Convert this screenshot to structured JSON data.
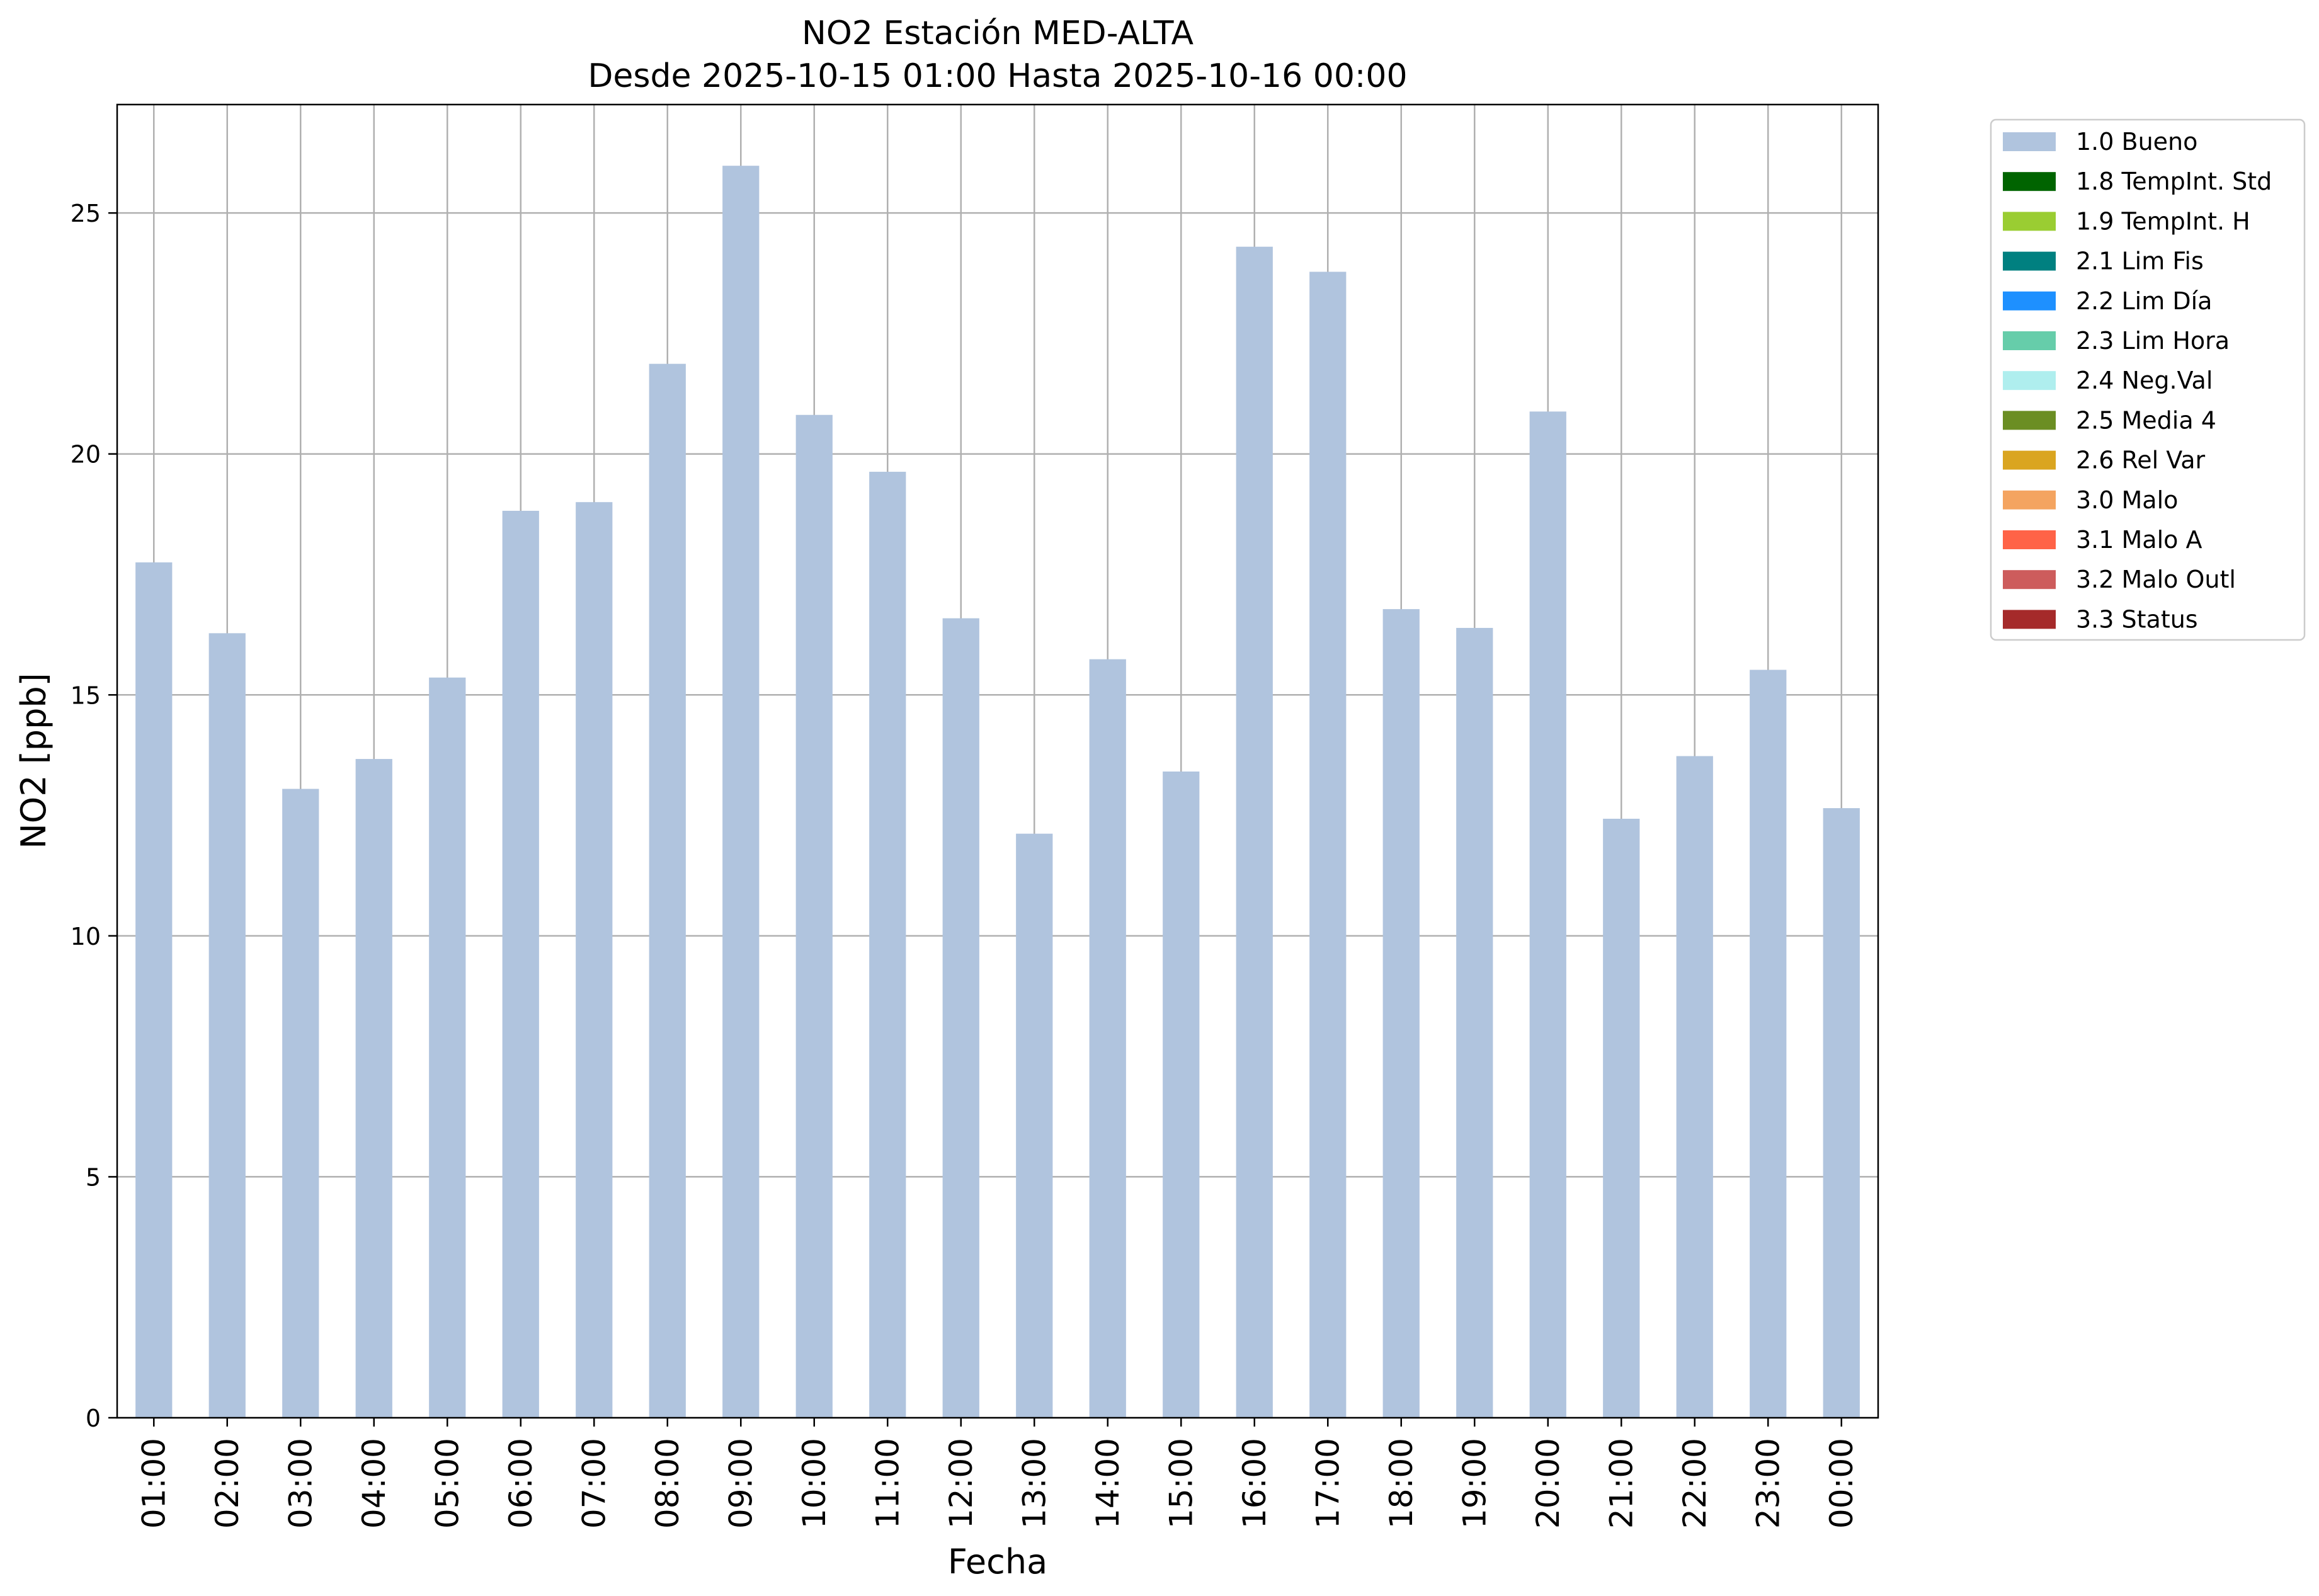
{
  "chart_data": {
    "type": "bar",
    "title": "NO2 Estación MED-ALTA",
    "subtitle": "Desde 2025-10-15 01:00 Hasta 2025-10-16 00:00",
    "xlabel": "Fecha",
    "ylabel": "NO2 [ppb]",
    "ylim": [
      0,
      27.25
    ],
    "yticks": [
      0,
      5,
      10,
      15,
      20,
      25
    ],
    "grid": true,
    "legend_position": "outside-right-top",
    "categories": [
      "01:00",
      "02:00",
      "03:00",
      "04:00",
      "05:00",
      "06:00",
      "07:00",
      "08:00",
      "09:00",
      "10:00",
      "11:00",
      "12:00",
      "13:00",
      "14:00",
      "15:00",
      "16:00",
      "17:00",
      "18:00",
      "19:00",
      "20:00",
      "21:00",
      "22:00",
      "23:00",
      "00:00"
    ],
    "series": [
      {
        "name": "1.0 Bueno",
        "color": "#b0c4de",
        "values": [
          17.75,
          16.28,
          13.05,
          13.67,
          15.36,
          18.82,
          19.0,
          21.87,
          25.98,
          20.81,
          19.63,
          16.59,
          12.12,
          15.74,
          13.41,
          24.3,
          23.78,
          16.78,
          16.39,
          20.88,
          12.43,
          13.73,
          15.52,
          12.65
        ]
      }
    ],
    "legend": [
      {
        "label": "1.0 Bueno",
        "color": "#b0c4de"
      },
      {
        "label": "1.8 TempInt. Std",
        "color": "#006400"
      },
      {
        "label": "1.9 TempInt. H",
        "color": "#9acd32"
      },
      {
        "label": "2.1 Lim Fis",
        "color": "#008080"
      },
      {
        "label": "2.2 Lim Día",
        "color": "#1e90ff"
      },
      {
        "label": "2.3 Lim Hora",
        "color": "#66cdaa"
      },
      {
        "label": "2.4 Neg.Val",
        "color": "#afeeee"
      },
      {
        "label": "2.5 Media 4",
        "color": "#6b8e23"
      },
      {
        "label": "2.6 Rel Var",
        "color": "#daa520"
      },
      {
        "label": "3.0 Malo",
        "color": "#f4a460"
      },
      {
        "label": "3.1 Malo A",
        "color": "#ff6347"
      },
      {
        "label": "3.2 Malo Outl",
        "color": "#cd5c5c"
      },
      {
        "label": "3.3 Status",
        "color": "#a52a2a"
      }
    ]
  }
}
